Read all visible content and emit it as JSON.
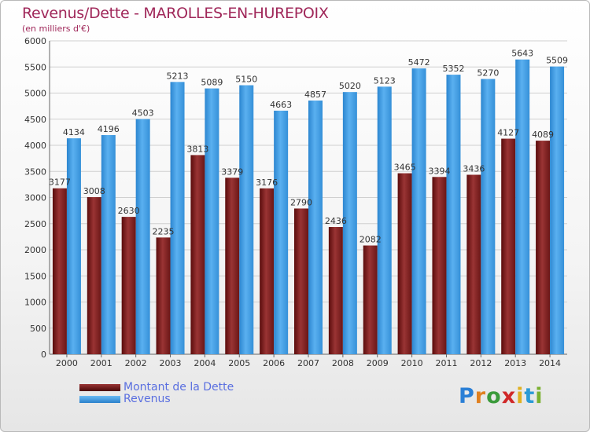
{
  "title": "Revenus/Dette - MAROLLES-EN-HUREPOIX",
  "subtitle": "(en milliers d'€)",
  "legend": {
    "debt_label": "Montant de la Dette",
    "revenue_label": "Revenus"
  },
  "logo": {
    "letters": [
      "P",
      "r",
      "o",
      "x",
      "i",
      "t",
      "i"
    ],
    "colors": [
      "#2a7fd6",
      "#e08020",
      "#3a9a3a",
      "#d02828",
      "#e0b020",
      "#2a9ad6",
      "#7ab030"
    ]
  },
  "colors": {
    "debt": "#7a2222",
    "revenue": "#3a98e0",
    "grid": "#d0d0d0",
    "axis_text": "#333333"
  },
  "chart_data": {
    "type": "bar",
    "title": "Revenus/Dette - MAROLLES-EN-HUREPOIX",
    "subtitle": "(en milliers d'€)",
    "categories": [
      "2000",
      "2001",
      "2002",
      "2003",
      "2004",
      "2005",
      "2006",
      "2007",
      "2008",
      "2009",
      "2010",
      "2011",
      "2012",
      "2013",
      "2014"
    ],
    "yticks": [
      0,
      500,
      1000,
      1500,
      2000,
      2500,
      3000,
      3500,
      4000,
      4500,
      5000,
      5500,
      6000
    ],
    "ylim": [
      0,
      6000
    ],
    "grid": true,
    "legend_position": "bottom-left",
    "series": [
      {
        "name": "Montant de la Dette",
        "values": [
          3177,
          3008,
          2630,
          2235,
          3813,
          3379,
          3176,
          2790,
          2436,
          2082,
          3465,
          3394,
          3436,
          4127,
          4089
        ],
        "labels": [
          "3177",
          "3008",
          "2630",
          "2235",
          "3813",
          "3379",
          "3176",
          "2790",
          "2436",
          "2082",
          "3465",
          "3394",
          "3436",
          "4127",
          "4089"
        ]
      },
      {
        "name": "Revenus",
        "values": [
          4134,
          4196,
          4503,
          5213,
          5089,
          5150,
          4663,
          4857,
          5020,
          5123,
          5472,
          5352,
          5270,
          5643,
          5509
        ],
        "labels": [
          "4134",
          "4196",
          "4503",
          "5213",
          "5089",
          "5150",
          "4663",
          "4857",
          "5020",
          "5123",
          "5472",
          "5352",
          "5270",
          "5643",
          "5509"
        ]
      }
    ]
  }
}
